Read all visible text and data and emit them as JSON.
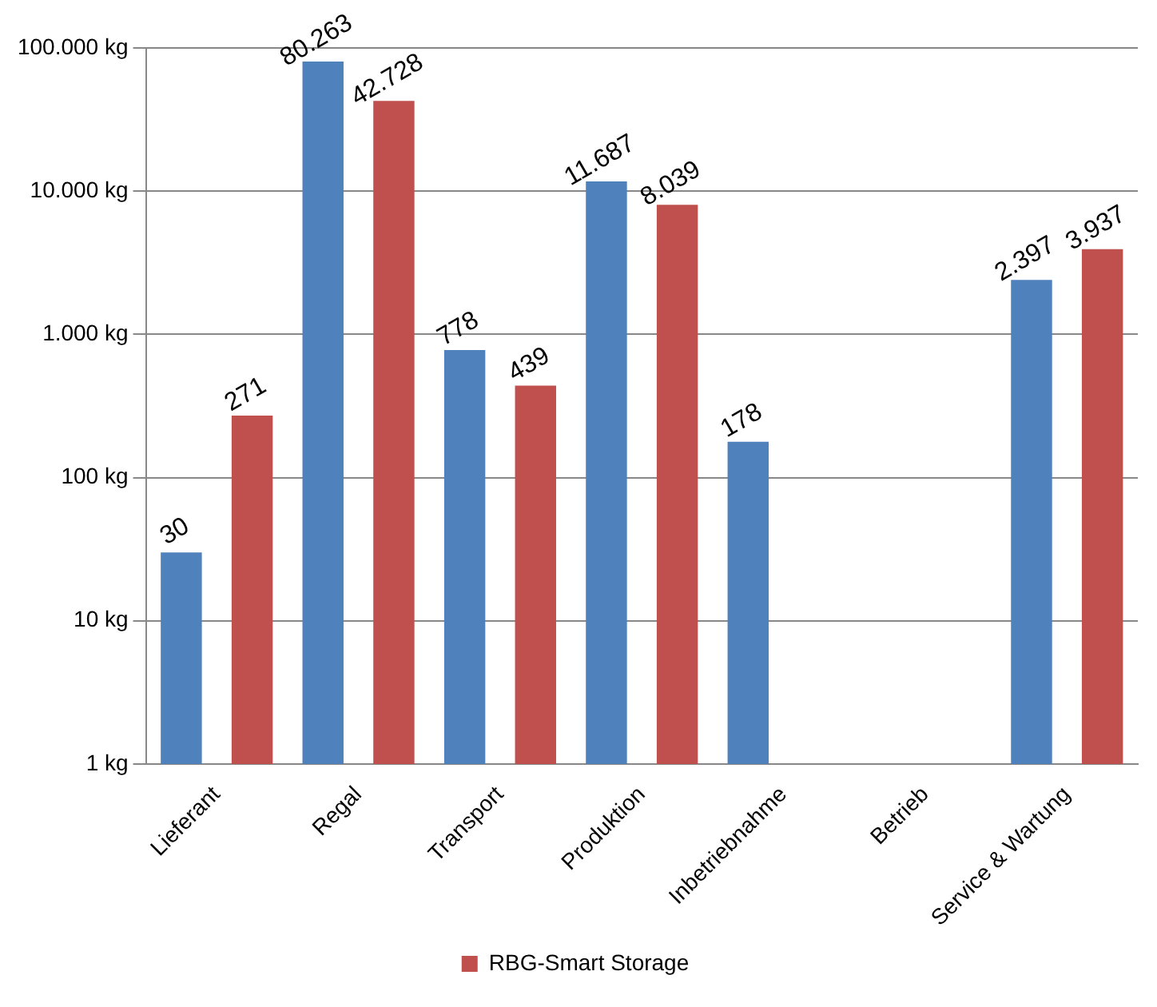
{
  "chart_data": {
    "type": "bar",
    "log": "y",
    "ylim": [
      1,
      100000
    ],
    "yticks": [
      {
        "value": 1,
        "label": "1 kg"
      },
      {
        "value": 10,
        "label": "10 kg"
      },
      {
        "value": 100,
        "label": "100 kg"
      },
      {
        "value": 1000,
        "label": "1.000 kg"
      },
      {
        "value": 10000,
        "label": "10.000 kg"
      },
      {
        "value": 100000,
        "label": "100.000 kg"
      }
    ],
    "categories": [
      "Lieferant",
      "Regal",
      "Transport",
      "Produktion",
      "Inbetriebnahme",
      "Betrieb",
      "Service & Wartung"
    ],
    "series": [
      {
        "color": "#4f81bd",
        "values": [
          30,
          80263,
          778,
          11687,
          178,
          null,
          2397
        ],
        "value_labels": [
          "30",
          "80.263",
          "778",
          "11.687",
          "178",
          null,
          "2.397"
        ]
      },
      {
        "name": "RBG-Smart Storage",
        "color": "#c0504d",
        "values": [
          271,
          42728,
          439,
          8039,
          null,
          null,
          3937
        ],
        "value_labels": [
          "271",
          "42.728",
          "439",
          "8.039",
          null,
          null,
          "3.937"
        ]
      }
    ],
    "grid": "y",
    "legend": "bottom"
  }
}
